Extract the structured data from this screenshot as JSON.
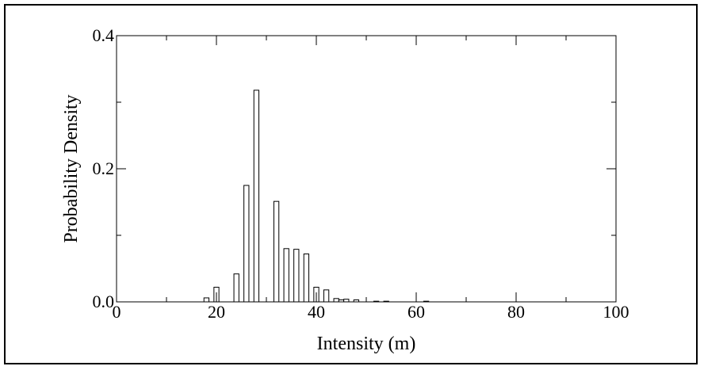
{
  "chart_data": {
    "type": "bar",
    "title": "",
    "xlabel": "Intensity (m)",
    "ylabel": "Probability Density",
    "xlim": [
      0,
      100
    ],
    "ylim": [
      0,
      0.4
    ],
    "xticks": [
      "0",
      "20",
      "40",
      "60",
      "80",
      "100"
    ],
    "yticks": [
      "0.0",
      "0.2",
      "0.4"
    ],
    "grid": false,
    "legend": "none",
    "bar_fill": "#ffffff",
    "bar_stroke": "#000000",
    "bar_width": 1,
    "x": [
      18,
      20,
      24,
      26,
      28,
      32,
      34,
      36,
      38,
      40,
      42,
      44,
      45,
      46,
      48,
      52,
      54,
      62
    ],
    "values": [
      0.006,
      0.022,
      0.042,
      0.175,
      0.318,
      0.151,
      0.08,
      0.079,
      0.072,
      0.022,
      0.018,
      0.005,
      0.003,
      0.004,
      0.003,
      0.001,
      0.001,
      0.001
    ]
  }
}
